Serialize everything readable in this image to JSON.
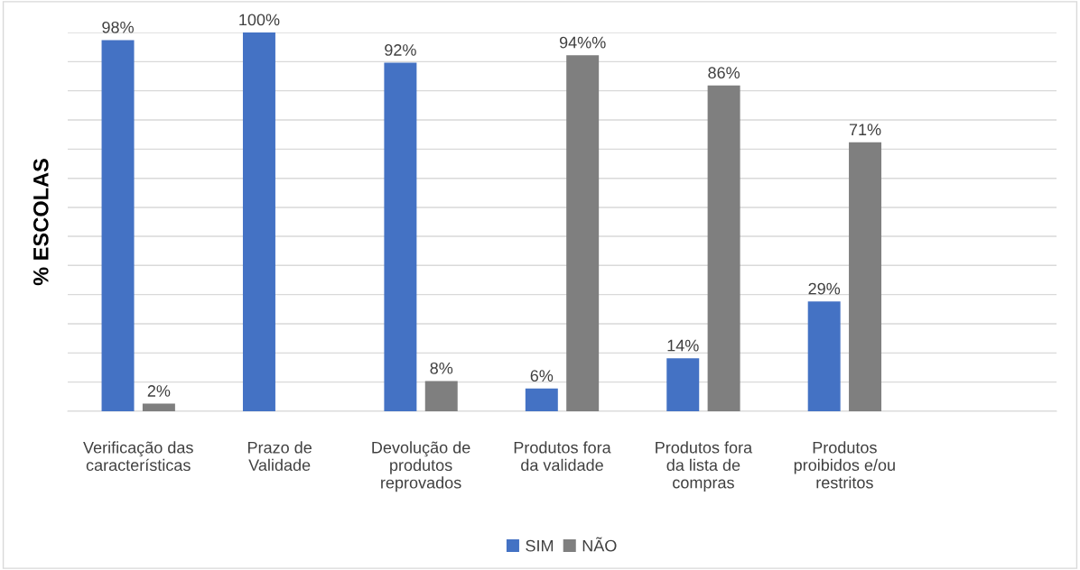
{
  "chart_data": {
    "type": "bar",
    "ylabel": "% ESCOLAS",
    "categories": [
      "Verificação das\ncaracterísticas",
      "Prazo de\nValidade",
      "Devolução de\nprodutos\nreprovados",
      "Produtos fora\nda validade",
      "Produtos fora\nda lista de\ncompras",
      "Produtos\nproibidos e/ou\nrestritos",
      null
    ],
    "series": [
      {
        "name": "SIM",
        "color": "#4472c4",
        "values": [
          98,
          100,
          92,
          6,
          14,
          29,
          null
        ],
        "value_labels": [
          "98%",
          "100%",
          "92%",
          "6%",
          "14%",
          "29%",
          null
        ]
      },
      {
        "name": "NÃO",
        "color": "#7f7f7f",
        "values": [
          2,
          null,
          8,
          94,
          86,
          71,
          null
        ],
        "value_labels": [
          "2%",
          null,
          "8%",
          "94%%",
          "86%",
          "71%",
          null
        ]
      }
    ],
    "ylim": [
      0,
      100
    ],
    "yticks": [
      0,
      {
        "value": 7.7,
        "label": null
      },
      {
        "value": 15.4,
        "label": null
      },
      {
        "value": 23.1,
        "label": null
      },
      {
        "value": 30.8,
        "label": null
      },
      {
        "value": 38.5,
        "label": null
      },
      {
        "value": 46.2,
        "label": null
      },
      {
        "value": 53.8,
        "label": null
      },
      {
        "value": 61.5,
        "label": null
      },
      {
        "value": 69.2,
        "label": null
      },
      {
        "value": 76.9,
        "label": null
      },
      {
        "value": 84.6,
        "label": null
      },
      {
        "value": 92.3,
        "label": null
      },
      {
        "value": 100,
        "label": null
      }
    ],
    "tick_labels": "x",
    "grid": "y",
    "legend": "bottom"
  }
}
